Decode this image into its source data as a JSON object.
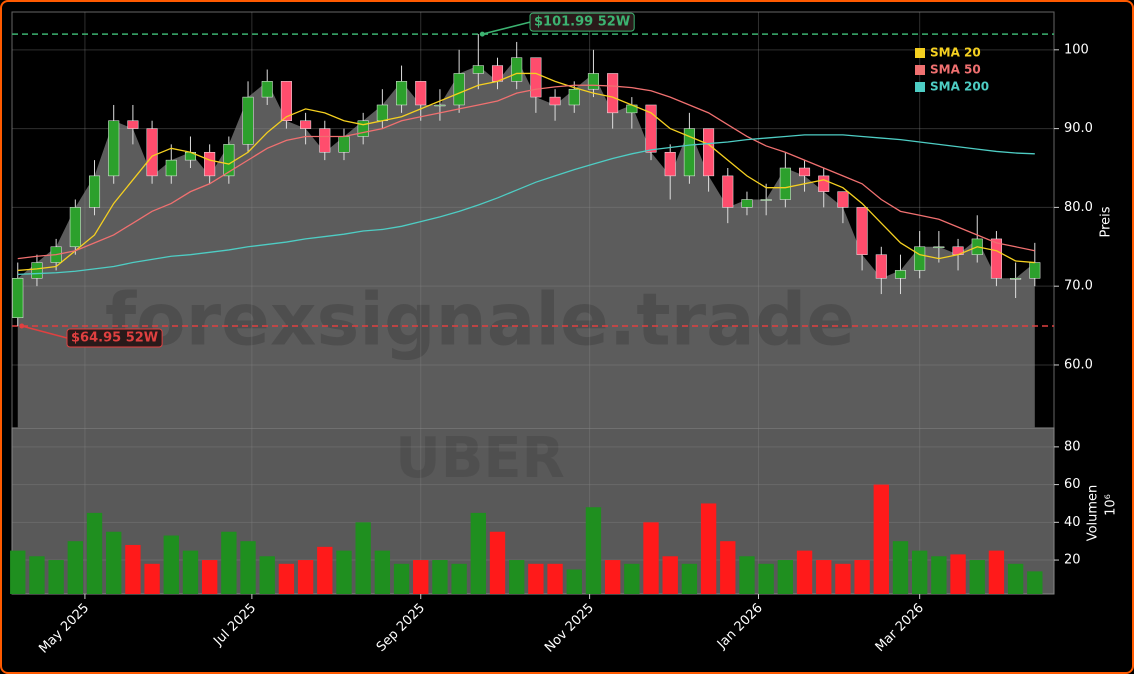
{
  "chart_data": [
    {
      "type": "candlestick",
      "ylabel": "Preis",
      "legend": "upper right",
      "grid": true,
      "up_color": "#2ca02c",
      "down_color": "#ff4d6d",
      "area_color": "#5c5c5c",
      "watermark": "forexsignale.trade",
      "xlim": [
        -0.3,
        54
      ],
      "ylim": [
        52,
        104.8
      ],
      "yticks": [
        {
          "value": 60,
          "label": "60.0"
        },
        {
          "value": 70,
          "label": "70.0"
        },
        {
          "value": 80,
          "label": "80.0"
        },
        {
          "value": 90,
          "label": "90.0"
        },
        {
          "value": 100,
          "label": "100"
        }
      ],
      "x": [
        0,
        1,
        2,
        3,
        4,
        5,
        6,
        7,
        8,
        9,
        10,
        11,
        12,
        13,
        14,
        15,
        16,
        17,
        18,
        19,
        20,
        21,
        22,
        23,
        24,
        25,
        26,
        27,
        28,
        29,
        30,
        31,
        32,
        33,
        34,
        35,
        36,
        37,
        38,
        39,
        40,
        41,
        42,
        43,
        44,
        45,
        46,
        47,
        48,
        49,
        50,
        51,
        52,
        53
      ],
      "open": [
        66,
        71,
        73,
        75,
        80,
        84,
        91,
        90,
        84,
        86,
        87,
        84,
        88,
        94,
        96,
        91,
        90,
        87,
        89,
        91,
        93,
        96,
        93,
        93,
        97,
        98,
        96,
        99,
        94,
        93,
        95,
        97,
        92,
        93,
        87,
        84,
        90,
        84,
        80,
        81,
        81,
        85,
        84,
        82,
        80,
        74,
        71,
        72,
        75,
        75,
        74,
        76,
        71,
        71
      ],
      "high": [
        73,
        74,
        76,
        81,
        86,
        93,
        93,
        91,
        88,
        89,
        88,
        89,
        96,
        97.5,
        96,
        92,
        91,
        90,
        92,
        95,
        98,
        96,
        95,
        100,
        101.99,
        99,
        101,
        99,
        95,
        96,
        100,
        97,
        94,
        93,
        88,
        92,
        90,
        85,
        82,
        83,
        87,
        86,
        85,
        82,
        80,
        75,
        74,
        77,
        77,
        76,
        79,
        77,
        73,
        75.5
      ],
      "low": [
        64.95,
        70,
        72,
        74,
        79,
        83,
        88,
        83,
        83,
        85,
        83,
        83,
        87,
        93,
        90,
        88,
        86,
        86,
        88,
        90,
        92,
        91,
        91,
        92,
        95,
        95,
        95,
        92,
        91,
        92,
        94,
        90,
        90,
        86,
        81,
        83,
        82,
        78,
        79,
        79,
        80,
        82,
        80,
        78,
        72,
        69,
        69,
        71,
        73,
        72,
        73,
        70,
        68.5,
        70
      ],
      "close": [
        71,
        73,
        75,
        80,
        84,
        91,
        90,
        84,
        86,
        87,
        84,
        88,
        94,
        96,
        91,
        90,
        87,
        89,
        91,
        93,
        96,
        93,
        93,
        97,
        98,
        96,
        99,
        94,
        93,
        95,
        97,
        92,
        93,
        87,
        84,
        90,
        84,
        80,
        81,
        81,
        85,
        84,
        82,
        80,
        74,
        71,
        72,
        75,
        75,
        74,
        76,
        71,
        71,
        73
      ],
      "series": [
        {
          "name": "SMA 20",
          "color": "#f5d020",
          "values": [
            72,
            72.2,
            72.5,
            74.5,
            76.5,
            80.5,
            83.5,
            86.5,
            87.5,
            87,
            86,
            85.5,
            87,
            89.5,
            91.5,
            92.5,
            92,
            91,
            90.5,
            91,
            91.5,
            92.5,
            93.5,
            94.5,
            95.5,
            96,
            97,
            97,
            96,
            95.2,
            94.5,
            94,
            93,
            92,
            90,
            89,
            88,
            86,
            84,
            82.5,
            82.5,
            83,
            83.5,
            82.5,
            80.5,
            78,
            75.5,
            74,
            73.5,
            74,
            75,
            74.5,
            73.2,
            73
          ]
        },
        {
          "name": "SMA 50",
          "color": "#f07070",
          "values": [
            73.5,
            73.8,
            74,
            74.5,
            75.5,
            76.5,
            78,
            79.5,
            80.5,
            82,
            83,
            84.5,
            86,
            87.5,
            88.5,
            89,
            89,
            89,
            89.5,
            90,
            91,
            91.5,
            92,
            92.5,
            93,
            93.5,
            94.5,
            95,
            95.3,
            95.5,
            95.5,
            95.4,
            95.2,
            94.8,
            94,
            93,
            92,
            90.5,
            89,
            87.8,
            87,
            86,
            85,
            84,
            83,
            81,
            79.5,
            79,
            78.5,
            77.5,
            76.5,
            75.5,
            75,
            74.5
          ]
        },
        {
          "name": "SMA 200",
          "color": "#4ecdc4",
          "values": [
            71.5,
            71.6,
            71.7,
            71.9,
            72.2,
            72.5,
            73,
            73.4,
            73.8,
            74,
            74.3,
            74.6,
            75,
            75.3,
            75.6,
            76,
            76.3,
            76.6,
            77,
            77.2,
            77.6,
            78.2,
            78.8,
            79.5,
            80.3,
            81.2,
            82.2,
            83.2,
            84,
            84.8,
            85.5,
            86.2,
            86.8,
            87.3,
            87.6,
            87.9,
            88.1,
            88.3,
            88.6,
            88.8,
            89,
            89.2,
            89.2,
            89.2,
            89,
            88.8,
            88.6,
            88.3,
            88,
            87.7,
            87.4,
            87.1,
            86.9,
            86.8
          ]
        }
      ],
      "annotations": [
        {
          "label": "$101.99 52W",
          "value": 101.99,
          "color": "#3cb371"
        },
        {
          "label": "$64.95 52W",
          "value": 64.95,
          "color": "#e04040"
        }
      ]
    },
    {
      "type": "bar",
      "ylabel": "Volumen",
      "yunit": "10⁶",
      "watermark": "UBER",
      "grid": true,
      "up_color": "#1f8f1f",
      "down_color": "#ff1a1a",
      "xlim": [
        -0.3,
        54
      ],
      "ylim": [
        2,
        90
      ],
      "yticks": [
        20,
        40,
        60,
        80
      ],
      "xticks": [
        {
          "value": 3.5,
          "label": "May 2025"
        },
        {
          "value": 12.2,
          "label": "Jul 2025"
        },
        {
          "value": 21,
          "label": "Sep 2025"
        },
        {
          "value": 29.8,
          "label": "Nov 2025"
        },
        {
          "value": 38.6,
          "label": "Jan 2026"
        },
        {
          "value": 47,
          "label": "Mar 2026"
        }
      ],
      "x": [
        0,
        1,
        2,
        3,
        4,
        5,
        6,
        7,
        8,
        9,
        10,
        11,
        12,
        13,
        14,
        15,
        16,
        17,
        18,
        19,
        20,
        21,
        22,
        23,
        24,
        25,
        26,
        27,
        28,
        29,
        30,
        31,
        32,
        33,
        34,
        35,
        36,
        37,
        38,
        39,
        40,
        41,
        42,
        43,
        44,
        45,
        46,
        47,
        48,
        49,
        50,
        51,
        52,
        53
      ],
      "values": [
        25,
        22,
        20,
        30,
        45,
        35,
        28,
        18,
        33,
        25,
        20,
        35,
        30,
        22,
        18,
        20,
        27,
        25,
        40,
        25,
        18,
        20,
        20,
        18,
        45,
        35,
        20,
        18,
        18,
        15,
        48,
        20,
        18,
        40,
        22,
        18,
        50,
        30,
        22,
        18,
        20,
        25,
        20,
        18,
        20,
        60,
        30,
        25,
        22,
        23,
        20,
        25,
        18,
        14
      ]
    }
  ]
}
